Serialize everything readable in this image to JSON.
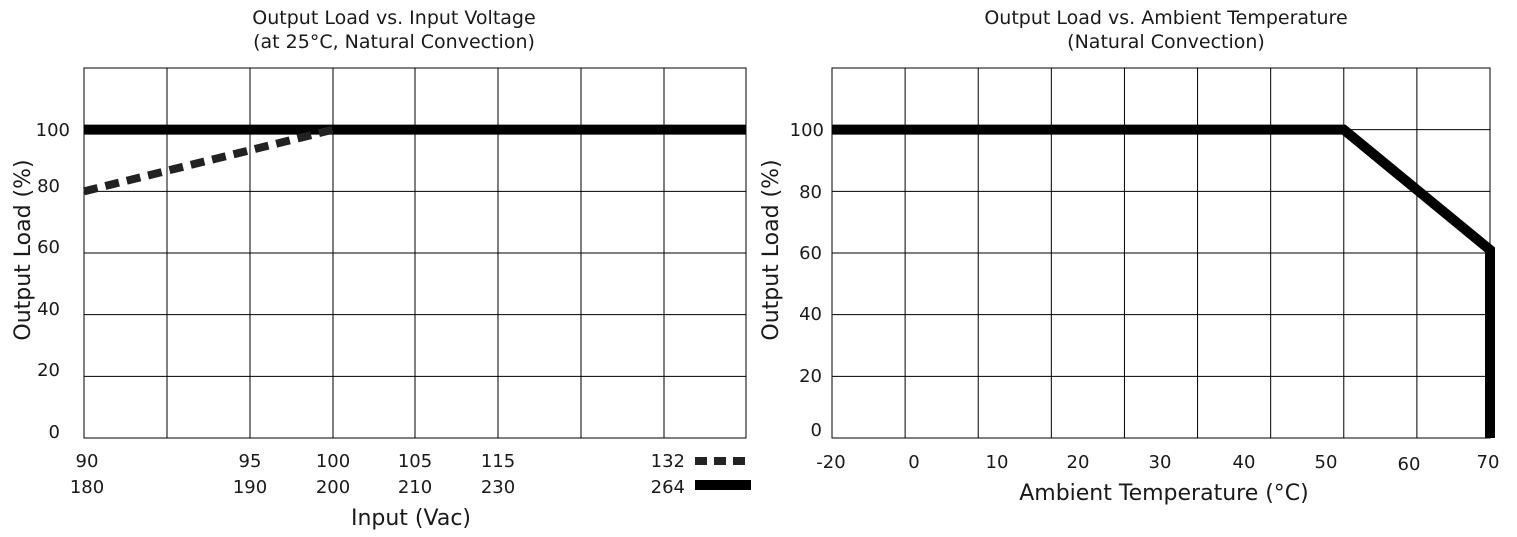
{
  "chart_data": [
    {
      "type": "line",
      "title": "Output Load vs. Input Voltage",
      "subtitle": "(at 25°C, Natural Convection)",
      "xlabel": "Input (Vac)",
      "ylabel": "Output Load (%)",
      "ylim": [
        0,
        120
      ],
      "y_ticks": [
        "0",
        "20",
        "40",
        "60",
        "80",
        "100"
      ],
      "x_tick_rows": [
        [
          "90",
          "95",
          "100",
          "105",
          "115",
          "132"
        ],
        [
          "180",
          "190",
          "200",
          "210",
          "230",
          "264"
        ]
      ],
      "grid": true,
      "legend_position": "bottom-right",
      "series": [
        {
          "name": "132",
          "style": "dashed",
          "color": "#222222",
          "x": [
            90,
            100,
            132
          ],
          "y": [
            80,
            100,
            100
          ]
        },
        {
          "name": "264",
          "style": "solid",
          "color": "#000000",
          "x": [
            180,
            200,
            264
          ],
          "y": [
            100,
            100,
            100
          ]
        }
      ]
    },
    {
      "type": "line",
      "title": "Output Load vs. Ambient Temperature",
      "subtitle": "(Natural Convection)",
      "xlabel": "Ambient Temperature (°C)",
      "ylabel": "Output Load (%)",
      "xlim": [
        -20,
        70
      ],
      "ylim": [
        0,
        120
      ],
      "x_ticks": [
        "-20",
        "0",
        "10",
        "20",
        "30",
        "40",
        "50",
        "60",
        "70"
      ],
      "y_ticks": [
        "0",
        "20",
        "40",
        "60",
        "80",
        "100"
      ],
      "grid": true,
      "series": [
        {
          "style": "solid",
          "color": "#000000",
          "x": [
            -20,
            50,
            70,
            70
          ],
          "y": [
            100,
            100,
            61,
            0
          ]
        }
      ]
    }
  ]
}
